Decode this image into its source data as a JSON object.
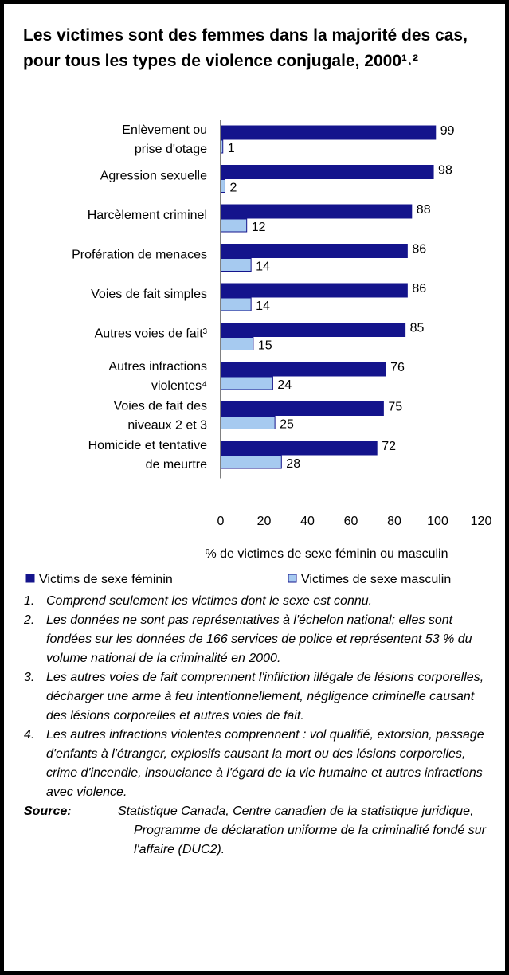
{
  "chart_data": {
    "type": "hbar",
    "title": "Les victimes sont des femmes dans la majorité des cas, pour tous les types de violence conjugale, 2000¹˒²",
    "categories": [
      "Enlèvement ou\nprise d'otage",
      "Agression sexuelle",
      "Harcèlement criminel",
      "Profération de menaces",
      "Voies de fait simples",
      "Autres voies de fait³",
      "Autres infractions\nviolentes⁴",
      "Voies de fait des\nniveaux 2 et 3",
      "Homicide et tentative\nde meurtre"
    ],
    "series": [
      {
        "name": "Victims de sexe féminin",
        "color": "#14148c",
        "values": [
          99,
          98,
          88,
          86,
          86,
          85,
          76,
          75,
          72
        ]
      },
      {
        "name": "Victimes de sexe masculin",
        "color": "#a6caf0",
        "values": [
          1,
          2,
          12,
          14,
          14,
          15,
          24,
          25,
          28
        ]
      }
    ],
    "xlabel": "% de victimes de sexe féminin ou masculin",
    "xlim": [
      0,
      120
    ],
    "xticks": [
      0,
      20,
      40,
      60,
      80,
      100,
      120
    ],
    "grid": false,
    "legend": "bottom"
  },
  "notes": [
    {
      "number": "1.",
      "text": "Comprend seulement les victimes dont le sexe est connu."
    },
    {
      "number": "2.",
      "text": "Les données ne sont pas représentatives à l'échelon national; elles sont fondées sur les données de 166 services de police et représentent 53 % du volume national de la criminalité en 2000."
    },
    {
      "number": "3.",
      "text": "Les autres voies de fait comprennent l'infliction illégale de lésions corporelles, décharger une arme à feu intentionnellement, négligence criminelle causant des lésions corporelles et autres voies de fait."
    },
    {
      "number": "4.",
      "text": "Les autres infractions violentes comprennent : vol qualifié, extorsion, passage d'enfants à l'étranger, explosifs causant la mort ou des lésions corporelles, crime d'incendie, insouciance à l'égard de la vie humaine et autres infractions avec violence."
    }
  ],
  "source": {
    "label": "Source:",
    "text": "Statistique Canada, Centre canadien de la statistique juridique, Programme de déclaration uniforme de la criminalité fondé sur l'affaire (DUC2)."
  }
}
